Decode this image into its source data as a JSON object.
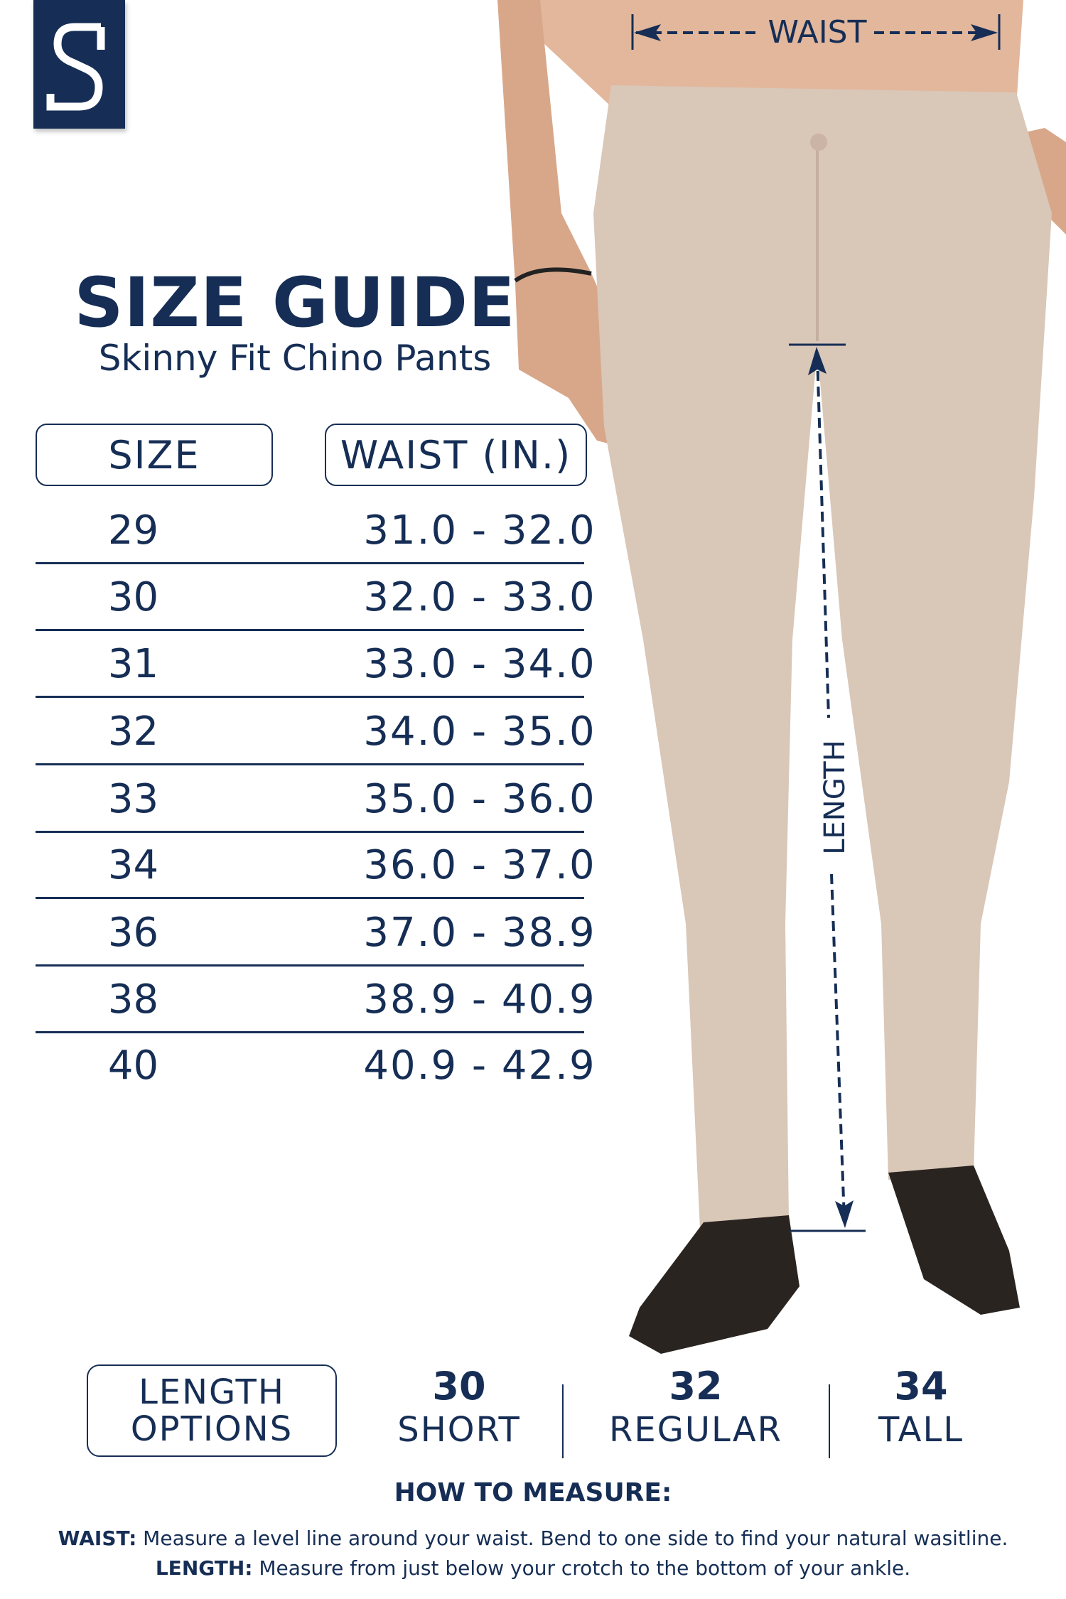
{
  "brand": {
    "logo_letter": "S",
    "logo_color": "#162e55"
  },
  "header": {
    "title": "SIZE GUIDE",
    "subtitle": "Skinny Fit Chino Pants"
  },
  "table": {
    "columns": [
      "SIZE",
      "WAIST (IN.)"
    ],
    "rows": [
      {
        "size": "29",
        "waist": "31.0 - 32.0"
      },
      {
        "size": "30",
        "waist": "32.0 - 33.0"
      },
      {
        "size": "31",
        "waist": "33.0 - 34.0"
      },
      {
        "size": "32",
        "waist": "34.0 - 35.0"
      },
      {
        "size": "33",
        "waist": "35.0 - 36.0"
      },
      {
        "size": "34",
        "waist": "36.0 - 37.0"
      },
      {
        "size": "36",
        "waist": "37.0 - 38.9"
      },
      {
        "size": "38",
        "waist": "38.9 - 40.9"
      },
      {
        "size": "40",
        "waist": "40.9 - 42.9"
      }
    ]
  },
  "photo": {
    "waist_label": "WAIST",
    "length_label": "LENGTH"
  },
  "length_options": {
    "label_line1": "LENGTH",
    "label_line2": "OPTIONS",
    "options": [
      {
        "value": "30",
        "name": "SHORT"
      },
      {
        "value": "32",
        "name": "REGULAR"
      },
      {
        "value": "34",
        "name": "TALL"
      }
    ]
  },
  "how_to_measure": {
    "title": "HOW TO MEASURE:",
    "waist_label": "WAIST:",
    "waist_text": " Measure a level line around your waist. Bend to one side to find your natural wasitline.",
    "length_label": "LENGTH:",
    "length_text": " Measure from just below your crotch to the bottom of your ankle."
  },
  "colors": {
    "navy": "#162e55",
    "pants": "#d9c7b8",
    "shoe": "#2a2421"
  }
}
